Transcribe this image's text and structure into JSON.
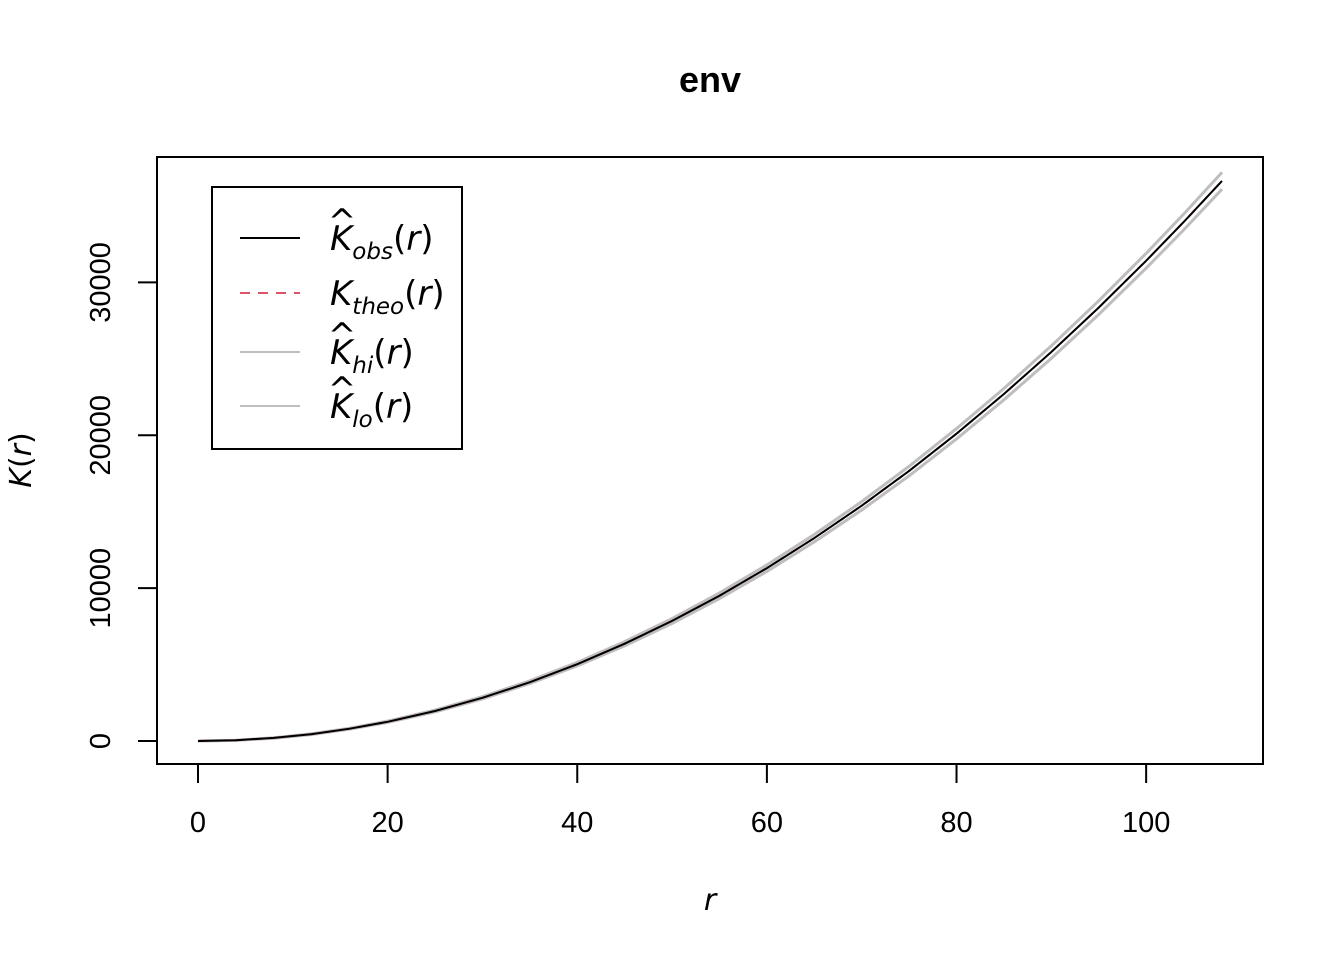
{
  "chart_data": {
    "type": "line",
    "title": "env",
    "xlabel": "r",
    "ylabel_base": "K",
    "ylabel_paren_open": "(",
    "ylabel_var": "r",
    "ylabel_paren_close": ")",
    "xlim": [
      0,
      108
    ],
    "ylim": [
      0,
      36700
    ],
    "x_ticks": [
      0,
      20,
      40,
      60,
      80,
      100
    ],
    "x_tick_labels": [
      "0",
      "20",
      "40",
      "60",
      "80",
      "100"
    ],
    "y_ticks": [
      0,
      10000,
      20000,
      30000
    ],
    "y_tick_labels": [
      "0",
      "10000",
      "20000",
      "30000"
    ],
    "legend_position": "top-left",
    "grid": false,
    "x": [
      0,
      4,
      8,
      12,
      16,
      20,
      25,
      30,
      35,
      40,
      45,
      50,
      55,
      60,
      65,
      70,
      75,
      80,
      85,
      90,
      95,
      100,
      104,
      108
    ],
    "series": [
      {
        "key": "obs",
        "color": "#000000",
        "dash": "",
        "values": [
          0,
          50,
          201,
          452,
          804,
          1257,
          1963,
          2827,
          3848,
          5027,
          6362,
          7854,
          9503,
          11310,
          13273,
          15394,
          17671,
          20106,
          22698,
          25447,
          28353,
          31416,
          33979,
          36644
        ]
      },
      {
        "key": "theo",
        "color": "#df536b",
        "dash": "10,8",
        "values": [
          0,
          50,
          201,
          452,
          804,
          1257,
          1963,
          2827,
          3848,
          5027,
          6362,
          7854,
          9503,
          11310,
          13273,
          15394,
          17671,
          20106,
          22698,
          25447,
          28353,
          31416,
          33979,
          36644
        ]
      },
      {
        "key": "hi",
        "color": "#bebebe",
        "dash": "",
        "values": [
          0,
          55,
          215,
          475,
          835,
          1300,
          2020,
          2900,
          3940,
          5140,
          6500,
          8010,
          9690,
          11520,
          13510,
          15660,
          17970,
          20440,
          23060,
          25850,
          28800,
          31900,
          34500,
          37200
        ]
      },
      {
        "key": "lo",
        "color": "#bebebe",
        "dash": "",
        "values": [
          0,
          40,
          185,
          428,
          772,
          1215,
          1905,
          2755,
          3760,
          4920,
          6225,
          7695,
          9315,
          11095,
          13025,
          15110,
          17350,
          19760,
          22320,
          25030,
          27900,
          30930,
          33460,
          36100
        ]
      }
    ],
    "legend": [
      {
        "key": "obs",
        "base": "K",
        "hat": "^",
        "sub": "obs",
        "open": "(",
        "var": "r",
        "close": ")"
      },
      {
        "key": "theo",
        "base": "K",
        "hat": "",
        "sub": "theo",
        "open": "(",
        "var": "r",
        "close": ")"
      },
      {
        "key": "hi",
        "base": "K",
        "hat": "^",
        "sub": "hi",
        "open": "(",
        "var": "r",
        "close": ")"
      },
      {
        "key": "lo",
        "base": "K",
        "hat": "^",
        "sub": "lo",
        "open": "(",
        "var": "r",
        "close": ")"
      }
    ]
  }
}
